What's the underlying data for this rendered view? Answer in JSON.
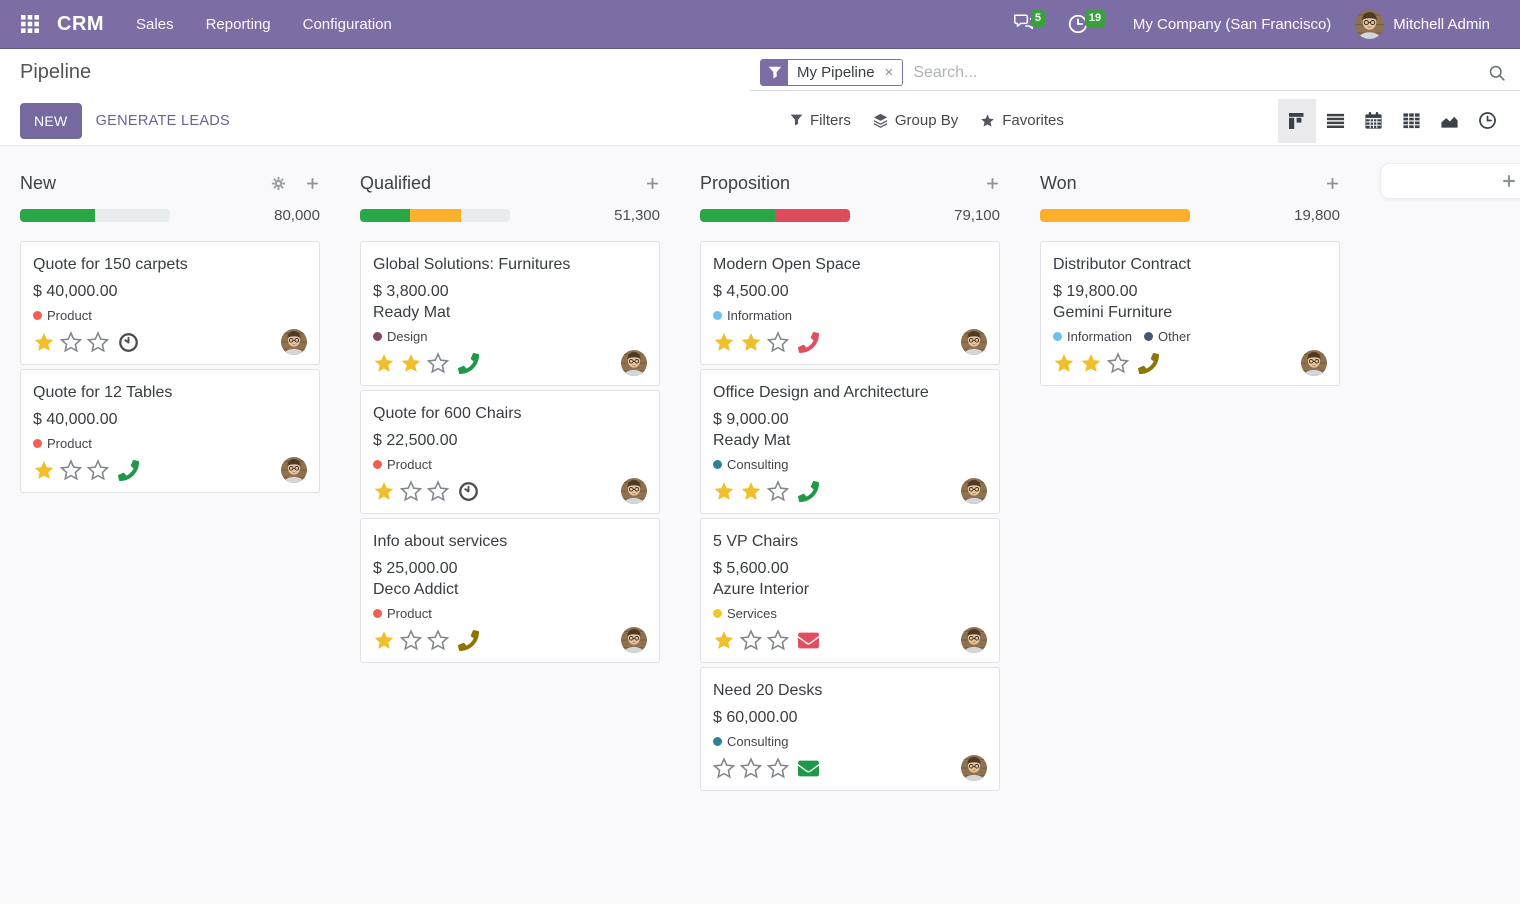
{
  "colors": {
    "navbar-bg": "#7c6ea5",
    "brand": "#7c6ea5",
    "primary-button": "#7569a0",
    "badge-green": "#3aa03e",
    "progress-green": "#29a746",
    "progress-orange": "#fbb02c",
    "progress-red": "#de4c5c",
    "progress-muted": "#e9ecef",
    "star-filled": "#f0c02c",
    "star-empty": "#82878e",
    "tag-red": "#f06050",
    "tag-purple": "#814968",
    "tag-lightblue": "#6cc1ed",
    "tag-teal": "#2c8397",
    "tag-yellow": "#f0c82f",
    "tag-navy": "#475577",
    "activity-green": "#1f9948",
    "activity-red": "#e04f5f",
    "activity-olive": "#8f7408",
    "activity-dark": "#494c52"
  },
  "navbar": {
    "brand": "CRM",
    "menus": [
      "Sales",
      "Reporting",
      "Configuration"
    ],
    "message_badge": "5",
    "activity_badge": "19",
    "company": "My Company (San Francisco)",
    "user": "Mitchell Admin"
  },
  "control_panel": {
    "title": "Pipeline",
    "facet_label": "My Pipeline",
    "facet_remove": "×",
    "search_placeholder": "Search...",
    "new_button": "NEW",
    "generate_leads_button": "GENERATE LEADS",
    "filters": "Filters",
    "group_by": "Group By",
    "favorites": "Favorites"
  },
  "columns": [
    {
      "name": "New",
      "total": "80,000",
      "has_gear": true,
      "progress": [
        {
          "color": "green",
          "pct": 50
        },
        {
          "color": "muted",
          "pct": 50
        }
      ],
      "cards": [
        {
          "title": "Quote for 150 carpets",
          "amount": "$ 40,000.00",
          "tags": [
            {
              "label": "Product",
              "color": "red"
            }
          ],
          "stars": 1,
          "activity": {
            "type": "clock",
            "color": "dark"
          }
        },
        {
          "title": "Quote for 12 Tables",
          "amount": "$ 40,000.00",
          "tags": [
            {
              "label": "Product",
              "color": "red"
            }
          ],
          "stars": 1,
          "activity": {
            "type": "phone",
            "color": "green"
          }
        }
      ]
    },
    {
      "name": "Qualified",
      "total": "51,300",
      "has_gear": false,
      "progress": [
        {
          "color": "green",
          "pct": 33
        },
        {
          "color": "orange",
          "pct": 34
        },
        {
          "color": "muted",
          "pct": 33
        }
      ],
      "cards": [
        {
          "title": "Global Solutions: Furnitures",
          "amount": "$ 3,800.00",
          "company": "Ready Mat",
          "tags": [
            {
              "label": "Design",
              "color": "purple"
            }
          ],
          "stars": 2,
          "activity": {
            "type": "phone",
            "color": "green"
          }
        },
        {
          "title": "Quote for 600 Chairs",
          "amount": "$ 22,500.00",
          "tags": [
            {
              "label": "Product",
              "color": "red"
            }
          ],
          "stars": 1,
          "activity": {
            "type": "clock",
            "color": "dark"
          }
        },
        {
          "title": "Info about services",
          "amount": "$ 25,000.00",
          "company": "Deco Addict",
          "tags": [
            {
              "label": "Product",
              "color": "red"
            }
          ],
          "stars": 1,
          "activity": {
            "type": "phone",
            "color": "olive"
          }
        }
      ]
    },
    {
      "name": "Proposition",
      "total": "79,100",
      "has_gear": false,
      "progress": [
        {
          "color": "green",
          "pct": 50
        },
        {
          "color": "red",
          "pct": 50
        }
      ],
      "cards": [
        {
          "title": "Modern Open Space",
          "amount": "$ 4,500.00",
          "tags": [
            {
              "label": "Information",
              "color": "lightblue"
            }
          ],
          "stars": 2,
          "activity": {
            "type": "phone",
            "color": "red"
          }
        },
        {
          "title": "Office Design and Architecture",
          "amount": "$ 9,000.00",
          "company": "Ready Mat",
          "tags": [
            {
              "label": "Consulting",
              "color": "teal"
            }
          ],
          "stars": 2,
          "activity": {
            "type": "phone",
            "color": "green"
          }
        },
        {
          "title": "5 VP Chairs",
          "amount": "$ 5,600.00",
          "company": "Azure Interior",
          "tags": [
            {
              "label": "Services",
              "color": "yellow"
            }
          ],
          "stars": 1,
          "activity": {
            "type": "envelope",
            "color": "red"
          }
        },
        {
          "title": "Need 20 Desks",
          "amount": "$ 60,000.00",
          "tags": [
            {
              "label": "Consulting",
              "color": "teal"
            }
          ],
          "stars": 0,
          "activity": {
            "type": "envelope",
            "color": "green"
          }
        }
      ]
    },
    {
      "name": "Won",
      "total": "19,800",
      "has_gear": false,
      "progress": [
        {
          "color": "orange",
          "pct": 100
        }
      ],
      "cards": [
        {
          "title": "Distributor Contract",
          "amount": "$ 19,800.00",
          "company": "Gemini Furniture",
          "tags": [
            {
              "label": "Information",
              "color": "lightblue"
            },
            {
              "label": "Other",
              "color": "navy"
            }
          ],
          "stars": 2,
          "activity": {
            "type": "phone",
            "color": "olive"
          }
        }
      ]
    }
  ]
}
